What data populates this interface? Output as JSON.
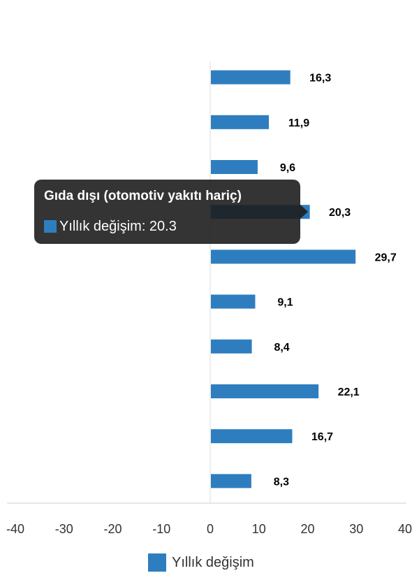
{
  "chart_data": {
    "type": "bar",
    "orientation": "horizontal",
    "categories": [
      "",
      "",
      "",
      "Gıda dışı (otomotiv yakıtı hariç)",
      "",
      "",
      "",
      "",
      "",
      ""
    ],
    "series": [
      {
        "name": "Yıllık değişim",
        "values": [
          16.3,
          11.9,
          9.6,
          20.3,
          29.7,
          9.1,
          8.4,
          22.1,
          16.7,
          8.3
        ]
      }
    ],
    "data_labels": [
      "16,3",
      "11,9",
      "9,6",
      "20,3",
      "29,7",
      "9,1",
      "8,4",
      "22,1",
      "16,7",
      "8,3"
    ],
    "xlim": [
      -40,
      40
    ],
    "x_ticks": [
      "-40",
      "-30",
      "-20",
      "-10",
      "0",
      "10",
      "20",
      "30",
      "40"
    ],
    "x_tick_values": [
      -40,
      -30,
      -20,
      -10,
      0,
      10,
      20,
      30,
      40
    ],
    "grid": false,
    "legend": "bottom",
    "color": "#2e7ebf"
  },
  "tooltip": {
    "title": "Gıda dışı (otomotiv yakıtı hariç)",
    "series_label": "Yıllık değişim: 20.3"
  },
  "legend": {
    "label": "Yıllık değişim"
  }
}
